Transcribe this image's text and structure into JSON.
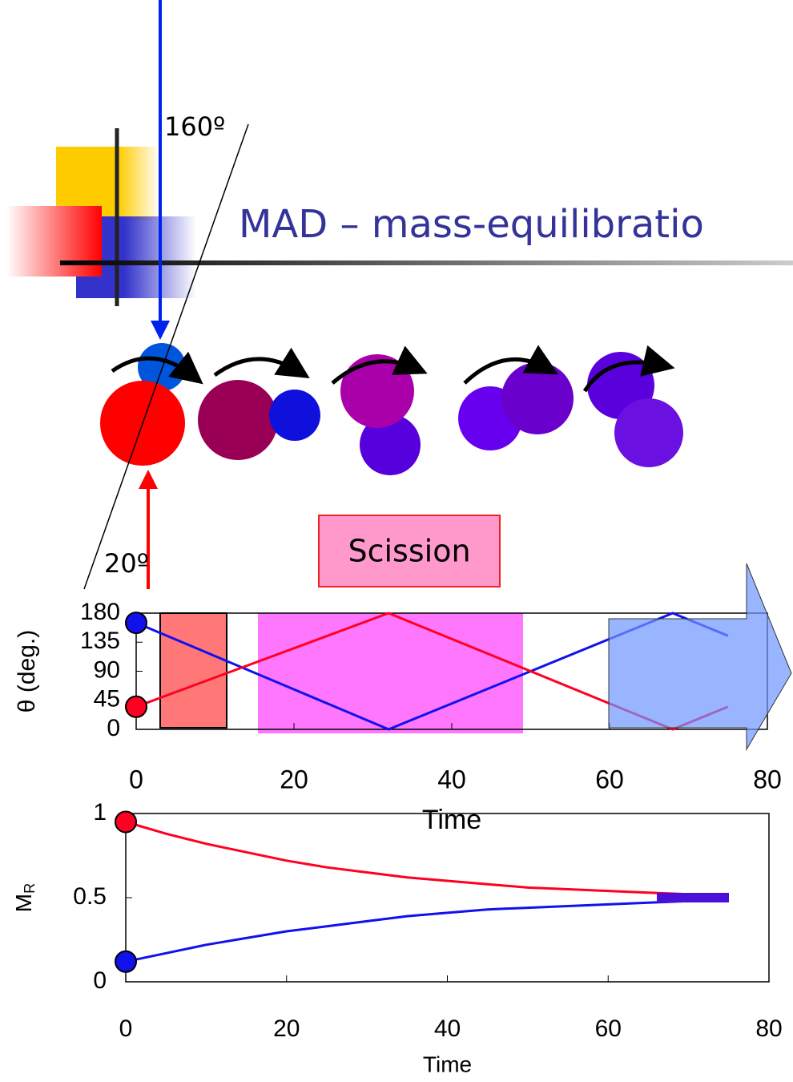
{
  "slide": {
    "title": "MAD – mass-equilibratio",
    "angle_top": "160º",
    "angle_bottom": "20º",
    "scission": "Scission"
  },
  "chart_data": [
    {
      "type": "line",
      "x": [
        0,
        32,
        68,
        75
      ],
      "series": [
        {
          "color": "#1111ee",
          "values": [
            165,
            0,
            180,
            145
          ]
        },
        {
          "color": "#ff0022",
          "values": [
            35,
            180,
            0,
            35
          ]
        }
      ],
      "xlim": [
        0,
        80
      ],
      "ylim": [
        0,
        180
      ],
      "xticks": [
        0,
        20,
        40,
        60,
        80
      ],
      "yticks": [
        0,
        45,
        90,
        135,
        180
      ],
      "xlabel": "Time",
      "ylabel": "θ (deg.)"
    },
    {
      "type": "line",
      "x": [
        0,
        5,
        10,
        15,
        20,
        25,
        30,
        35,
        40,
        45,
        50,
        55,
        60,
        65,
        70,
        75
      ],
      "series": [
        {
          "color": "#ff0022",
          "values": [
            0.95,
            0.88,
            0.82,
            0.77,
            0.72,
            0.68,
            0.65,
            0.62,
            0.6,
            0.58,
            0.56,
            0.55,
            0.54,
            0.53,
            0.52,
            0.52
          ]
        },
        {
          "color": "#1111ee",
          "values": [
            0.12,
            0.17,
            0.22,
            0.26,
            0.3,
            0.33,
            0.36,
            0.39,
            0.41,
            0.43,
            0.44,
            0.45,
            0.46,
            0.47,
            0.48,
            0.48
          ]
        }
      ],
      "xlim": [
        0,
        80
      ],
      "ylim": [
        0,
        1
      ],
      "xticks": [
        0,
        20,
        40,
        60,
        80
      ],
      "yticks": [
        0,
        0.5,
        1
      ],
      "xlabel": "Time",
      "ylabel": "M",
      "ylabel_sub": "R"
    }
  ]
}
